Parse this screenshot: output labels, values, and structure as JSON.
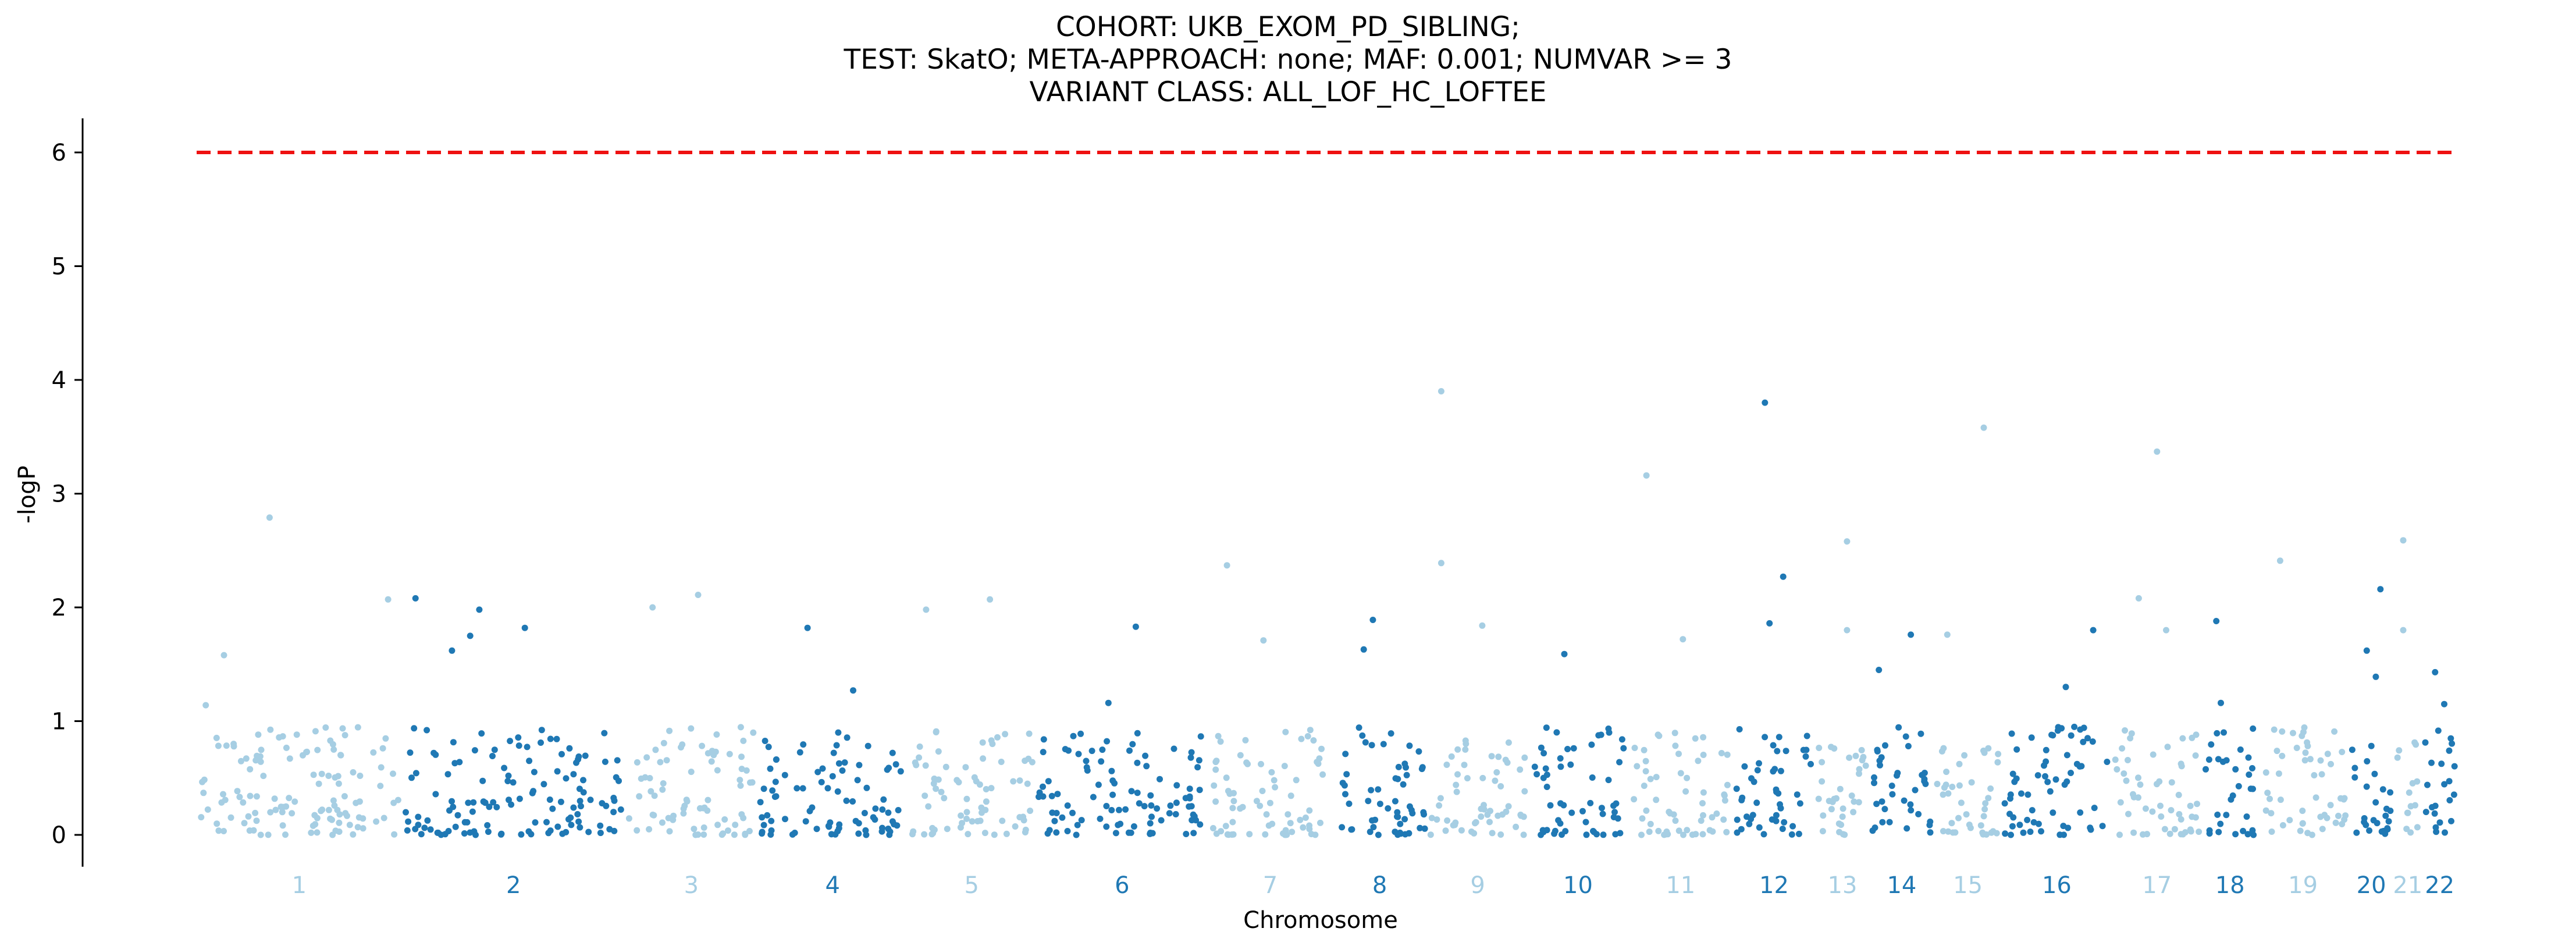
{
  "title_lines": [
    "COHORT: UKB_EXOM_PD_SIBLING;",
    "TEST: SkatO; META-APPROACH: none; MAF: 0.001; NUMVAR >= 3",
    "VARIANT CLASS: ALL_LOF_HC_LOFTEE"
  ],
  "colors": {
    "odd_chromosome": "#a6cee3",
    "even_chromosome": "#1f78b4",
    "threshold_line": "#ee1111",
    "axis": "#000000"
  },
  "chart_data": {
    "type": "scatter",
    "subtype": "manhattan",
    "xlabel": "Chromosome",
    "ylabel": "-logP",
    "ylim": [
      -0.28,
      6.3
    ],
    "yticks": [
      0,
      1,
      2,
      3,
      4,
      5,
      6
    ],
    "grid": false,
    "legend": "none",
    "threshold": {
      "y": 6,
      "style": "dashed",
      "color": "red"
    },
    "chromosomes": [
      {
        "label": "1",
        "range": [
          0.0,
          22.5
        ],
        "color_group": "odd",
        "top_points": [
          [
            1,
            1.14
          ],
          [
            3,
            1.58
          ],
          [
            8,
            2.79
          ],
          [
            21,
            2.07
          ]
        ]
      },
      {
        "label": "2",
        "range": [
          22.5,
          47.0
        ],
        "color_group": "even",
        "top_points": [
          [
            24,
            2.08
          ],
          [
            31,
            1.98
          ],
          [
            30,
            1.75
          ],
          [
            28,
            1.62
          ],
          [
            36,
            1.82
          ]
        ]
      },
      {
        "label": "3",
        "range": [
          47.0,
          61.5
        ],
        "color_group": "odd",
        "top_points": [
          [
            50,
            2.0
          ],
          [
            55,
            2.11
          ]
        ]
      },
      {
        "label": "4",
        "range": [
          61.5,
          78.0
        ],
        "color_group": "even",
        "top_points": [
          [
            67,
            1.82
          ],
          [
            72,
            1.27
          ]
        ]
      },
      {
        "label": "5",
        "range": [
          78.0,
          92.0
        ],
        "color_group": "odd",
        "top_points": [
          [
            80,
            1.98
          ],
          [
            87,
            2.07
          ]
        ]
      },
      {
        "label": "6",
        "range": [
          92.0,
          111.0
        ],
        "color_group": "even",
        "top_points": [
          [
            103,
            1.83
          ],
          [
            100,
            1.16
          ]
        ]
      },
      {
        "label": "7",
        "range": [
          111.0,
          124.5
        ],
        "color_group": "odd",
        "top_points": [
          [
            113,
            2.37
          ],
          [
            117,
            1.71
          ]
        ]
      },
      {
        "label": "8",
        "range": [
          124.5,
          135.0
        ],
        "color_group": "even",
        "top_points": [
          [
            129,
            1.89
          ],
          [
            128,
            1.63
          ]
        ]
      },
      {
        "label": "9",
        "range": [
          135.0,
          146.0
        ],
        "color_group": "odd",
        "top_points": [
          [
            136.5,
            3.9
          ],
          [
            136.5,
            2.39
          ],
          [
            141,
            1.84
          ]
        ]
      },
      {
        "label": "10",
        "range": [
          146.0,
          157.0
        ],
        "color_group": "even",
        "top_points": [
          [
            150,
            1.59
          ]
        ]
      },
      {
        "label": "11",
        "range": [
          157.0,
          168.5
        ],
        "color_group": "odd",
        "top_points": [
          [
            159,
            3.16
          ],
          [
            163,
            1.72
          ]
        ]
      },
      {
        "label": "12",
        "range": [
          168.5,
          177.5
        ],
        "color_group": "even",
        "top_points": [
          [
            172,
            3.8
          ],
          [
            174,
            2.27
          ],
          [
            172.5,
            1.86
          ]
        ]
      },
      {
        "label": "13",
        "range": [
          177.5,
          183.5
        ],
        "color_group": "odd",
        "top_points": [
          [
            181,
            2.58
          ],
          [
            181,
            1.8
          ]
        ]
      },
      {
        "label": "14",
        "range": [
          183.5,
          190.5
        ],
        "color_group": "even",
        "top_points": [
          [
            188,
            1.76
          ],
          [
            184.5,
            1.45
          ]
        ]
      },
      {
        "label": "15",
        "range": [
          190.5,
          198.0
        ],
        "color_group": "odd",
        "top_points": [
          [
            196,
            3.58
          ],
          [
            192,
            1.76
          ]
        ]
      },
      {
        "label": "16",
        "range": [
          198.0,
          210.0
        ],
        "color_group": "even",
        "top_points": [
          [
            208,
            1.8
          ],
          [
            205,
            1.3
          ]
        ]
      },
      {
        "label": "17",
        "range": [
          210.0,
          220.0
        ],
        "color_group": "odd",
        "top_points": [
          [
            215,
            3.37
          ],
          [
            213,
            2.08
          ],
          [
            216,
            1.8
          ]
        ]
      },
      {
        "label": "18",
        "range": [
          220.0,
          226.0
        ],
        "color_group": "even",
        "top_points": [
          [
            221.5,
            1.88
          ],
          [
            222,
            1.16
          ]
        ]
      },
      {
        "label": "19",
        "range": [
          226.0,
          236.0
        ],
        "color_group": "odd",
        "top_points": [
          [
            228.5,
            2.41
          ]
        ]
      },
      {
        "label": "20",
        "range": [
          236.0,
          241.0
        ],
        "color_group": "even",
        "top_points": [
          [
            239.5,
            2.16
          ],
          [
            238,
            1.62
          ],
          [
            239,
            1.39
          ]
        ]
      },
      {
        "label": "21",
        "range": [
          241.0,
          244.0
        ],
        "color_group": "odd",
        "top_points": [
          [
            242,
            2.59
          ],
          [
            242,
            1.8
          ]
        ]
      },
      {
        "label": "22",
        "range": [
          244.0,
          248.0
        ],
        "color_group": "even",
        "top_points": [
          [
            245.5,
            1.43
          ],
          [
            246.5,
            1.15
          ]
        ]
      }
    ],
    "background_points_per_chromosome": [
      122,
      126,
      75,
      84,
      72,
      97,
      71,
      55,
      56,
      56,
      58,
      47,
      33,
      37,
      40,
      62,
      52,
      31,
      51,
      26,
      14,
      22
    ],
    "background_y_range": [
      0.0,
      1.0
    ]
  }
}
